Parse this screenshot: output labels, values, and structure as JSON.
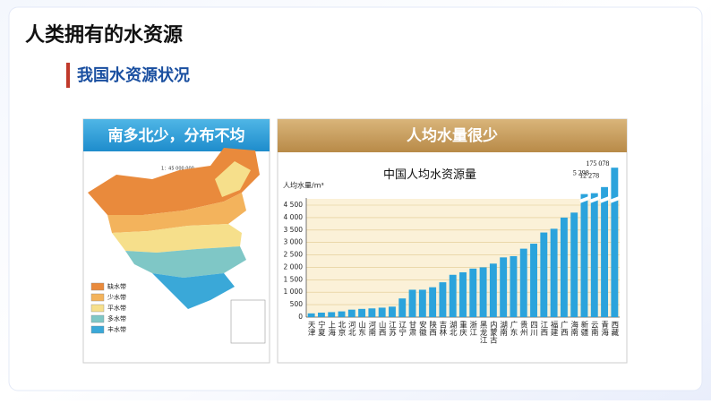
{
  "header": {
    "title": "人类拥有的水资源",
    "subtitle": "我国水资源状况"
  },
  "map": {
    "title": "南多北少，分布不均",
    "scale": "1：45 000 000",
    "legend": [
      {
        "label": "缺水带",
        "color": "#e98a3c"
      },
      {
        "label": "少水带",
        "color": "#f3b35c"
      },
      {
        "label": "平水带",
        "color": "#f6df8b"
      },
      {
        "label": "多水带",
        "color": "#7fc7c6"
      },
      {
        "label": "丰水带",
        "color": "#3aa8d8"
      }
    ]
  },
  "right_panel": {
    "title": "人均水量很少"
  },
  "chart_data": {
    "type": "bar",
    "title": "中国人均水资源量",
    "ylabel": "人均水量/m³",
    "color": "#2ba3dc",
    "categories": [
      "天津",
      "宁夏",
      "上海",
      "北京",
      "河北",
      "山东",
      "河南",
      "山西",
      "江苏",
      "辽宁",
      "甘肃",
      "安徽",
      "陕西",
      "吉林",
      "湖北",
      "重庆",
      "浙江",
      "黑龙江",
      "内蒙古",
      "湖南",
      "广东",
      "贵州",
      "四川",
      "江西",
      "福建",
      "广西",
      "海南",
      "新疆",
      "云南",
      "青海",
      "西藏"
    ],
    "values": [
      150,
      180,
      200,
      230,
      300,
      330,
      350,
      380,
      420,
      750,
      1100,
      1100,
      1200,
      1400,
      1700,
      1800,
      1950,
      2000,
      2150,
      2400,
      2450,
      2750,
      2950,
      3400,
      3550,
      4000,
      4200,
      4700,
      5298,
      12278,
      175078
    ],
    "value_labels": [
      null,
      null,
      null,
      null,
      null,
      null,
      null,
      null,
      null,
      null,
      null,
      null,
      null,
      null,
      null,
      null,
      null,
      null,
      null,
      null,
      null,
      null,
      null,
      null,
      null,
      null,
      null,
      null,
      "5 298",
      "12 278",
      "175 078"
    ],
    "ylim": [
      0,
      4500
    ],
    "yticks": [
      0,
      500,
      {
        "value": 1000,
        "label": "1 000"
      },
      {
        "value": 1500,
        "label": "1 500"
      },
      {
        "value": 2000,
        "label": "2 000"
      },
      {
        "value": 2500,
        "label": "2 500"
      },
      {
        "value": 3000,
        "label": "3 000"
      },
      {
        "value": 3500,
        "label": "3 500"
      },
      {
        "value": 4000,
        "label": "4 000"
      },
      {
        "value": 4500,
        "label": "4 500"
      }
    ],
    "grid": true
  }
}
